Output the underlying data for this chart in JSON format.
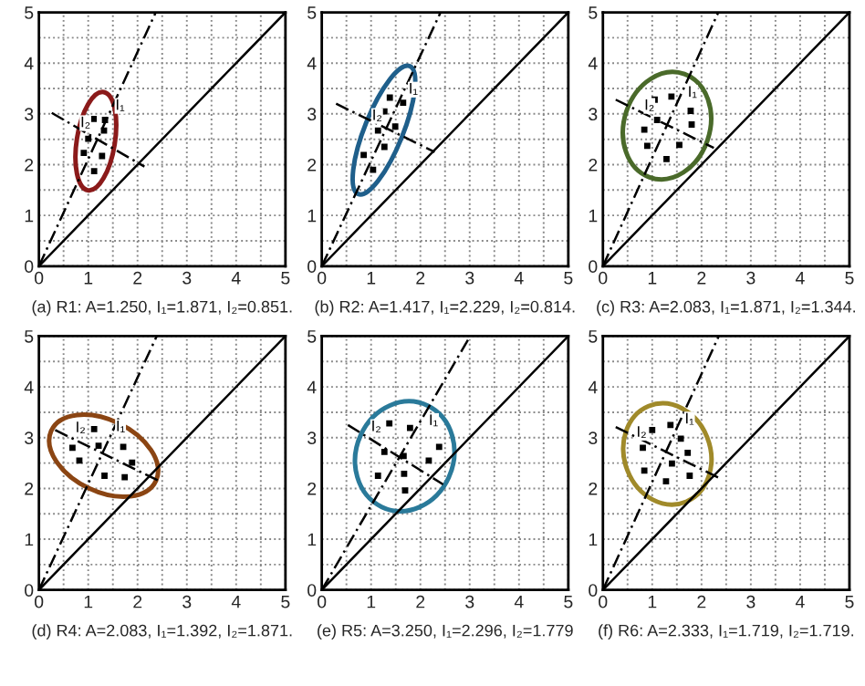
{
  "chart_data": [
    {
      "type": "scatter",
      "xlabel": "(a) R1: A=1.250, I₁=1.871, I₂=0.851.",
      "xlim": [
        0,
        5
      ],
      "ylim": [
        0,
        5
      ],
      "xticks": [
        0,
        {
          "value": 0.5,
          "label": null
        },
        1,
        {
          "value": 1.5,
          "label": null
        },
        2,
        {
          "value": 2.5,
          "label": null
        },
        3,
        {
          "value": 3.5,
          "label": null
        },
        4,
        {
          "value": 4.5,
          "label": null
        },
        5
      ],
      "yticks": [
        0,
        {
          "value": 0.5,
          "label": null
        },
        1,
        {
          "value": 1.5,
          "label": null
        },
        2,
        {
          "value": 2.5,
          "label": null
        },
        3,
        {
          "value": 3.5,
          "label": null
        },
        4,
        {
          "value": 4.5,
          "label": null
        },
        5
      ],
      "grid": true,
      "annotations": [
        {
          "text": "I₁",
          "x": 1.55,
          "y": 3.08
        },
        {
          "text": "I₂",
          "x": 0.84,
          "y": 2.74
        }
      ],
      "series": [
        {
          "type": "scatter",
          "marker": "square",
          "color": "#000000",
          "x": [
            1.11,
            1.34,
            1.32,
            1.0,
            0.91,
            1.28,
            1.12
          ],
          "values": [
            2.9,
            2.88,
            2.67,
            2.51,
            2.23,
            2.17,
            1.87
          ]
        },
        {
          "type": "line",
          "line_style": "solid",
          "color": "#000000",
          "x": [
            0,
            5
          ],
          "values": [
            0,
            5
          ]
        },
        {
          "type": "line",
          "line_style": "dashed",
          "color": "#000000",
          "x": [
            0,
            2.37
          ],
          "values": [
            0,
            5
          ]
        },
        {
          "type": "line",
          "line_style": "dashed",
          "color": "#000000",
          "x": [
            0.26,
            2.14
          ],
          "values": [
            3.02,
            1.96
          ]
        }
      ]
    },
    {
      "type": "scatter",
      "xlabel": "(b) R2: A=1.417, I₁=2.229, I₂=0.814.",
      "xlim": [
        0,
        5
      ],
      "ylim": [
        0,
        5
      ],
      "xticks": [
        0,
        {
          "value": 0.5,
          "label": null
        },
        1,
        {
          "value": 1.5,
          "label": null
        },
        2,
        {
          "value": 2.5,
          "label": null
        },
        3,
        {
          "value": 3.5,
          "label": null
        },
        4,
        {
          "value": 4.5,
          "label": null
        },
        5
      ],
      "yticks": [
        0,
        {
          "value": 0.5,
          "label": null
        },
        1,
        {
          "value": 1.5,
          "label": null
        },
        2,
        {
          "value": 2.5,
          "label": null
        },
        3,
        {
          "value": 3.5,
          "label": null
        },
        4,
        {
          "value": 4.5,
          "label": null
        },
        5
      ],
      "grid": true,
      "annotations": [
        {
          "text": "I₁",
          "x": 1.76,
          "y": 3.4
        },
        {
          "text": "I₂",
          "x": 1.02,
          "y": 2.88
        }
      ],
      "series": [
        {
          "type": "scatter",
          "marker": "square",
          "color": "#000000",
          "x": [
            1.38,
            1.65,
            1.27,
            1.14,
            1.49,
            1.27,
            0.85,
            1.04
          ],
          "values": [
            3.32,
            3.22,
            3.05,
            2.67,
            2.75,
            2.35,
            2.19,
            1.9
          ]
        },
        {
          "type": "line",
          "line_style": "solid",
          "color": "#000000",
          "x": [
            0,
            5
          ],
          "values": [
            0,
            5
          ]
        },
        {
          "type": "line",
          "line_style": "dashed",
          "color": "#000000",
          "x": [
            0,
            2.41
          ],
          "values": [
            0,
            5
          ]
        },
        {
          "type": "line",
          "line_style": "dashed",
          "color": "#000000",
          "x": [
            0.29,
            2.29
          ],
          "values": [
            3.2,
            2.25
          ]
        }
      ]
    },
    {
      "type": "scatter",
      "xlabel": "(c) R3: A=2.083, I₁=1.871, I₂=1.344.",
      "xlim": [
        0,
        5
      ],
      "ylim": [
        0,
        5
      ],
      "xticks": [
        0,
        {
          "value": 0.5,
          "label": null
        },
        1,
        {
          "value": 1.5,
          "label": null
        },
        2,
        {
          "value": 2.5,
          "label": null
        },
        3,
        {
          "value": 3.5,
          "label": null
        },
        4,
        {
          "value": 4.5,
          "label": null
        },
        5
      ],
      "yticks": [
        0,
        {
          "value": 0.5,
          "label": null
        },
        1,
        {
          "value": 1.5,
          "label": null
        },
        2,
        {
          "value": 2.5,
          "label": null
        },
        3,
        {
          "value": 3.5,
          "label": null
        },
        4,
        {
          "value": 4.5,
          "label": null
        },
        5
      ],
      "grid": true,
      "annotations": [
        {
          "text": "I₁",
          "x": 1.72,
          "y": 3.34
        },
        {
          "text": "I₂",
          "x": 0.84,
          "y": 3.08
        }
      ],
      "series": [
        {
          "type": "scatter",
          "marker": "square",
          "color": "#000000",
          "x": [
            1.05,
            1.39,
            1.78,
            1.1,
            0.84,
            1.8,
            1.55,
            0.9,
            1.29
          ],
          "values": [
            3.28,
            3.34,
            3.06,
            2.88,
            2.69,
            2.79,
            2.39,
            2.37,
            2.11
          ]
        },
        {
          "type": "line",
          "line_style": "solid",
          "color": "#000000",
          "x": [
            0,
            5
          ],
          "values": [
            0,
            5
          ]
        },
        {
          "type": "line",
          "line_style": "dashed",
          "color": "#000000",
          "x": [
            0,
            2.34
          ],
          "values": [
            0,
            5
          ]
        },
        {
          "type": "line",
          "line_style": "dashed",
          "color": "#000000",
          "x": [
            0.26,
            2.25
          ],
          "values": [
            3.28,
            2.33
          ]
        }
      ]
    },
    {
      "type": "scatter",
      "xlabel": "(d) R4: A=2.083, I₁=1.392, I₂=1.871.",
      "xlim": [
        0,
        5
      ],
      "ylim": [
        0,
        5
      ],
      "xticks": [
        0,
        {
          "value": 0.5,
          "label": null
        },
        1,
        {
          "value": 1.5,
          "label": null
        },
        2,
        {
          "value": 2.5,
          "label": null
        },
        3,
        {
          "value": 3.5,
          "label": null
        },
        4,
        {
          "value": 4.5,
          "label": null
        },
        5
      ],
      "yticks": [
        0,
        {
          "value": 0.5,
          "label": null
        },
        1,
        {
          "value": 1.5,
          "label": null
        },
        2,
        {
          "value": 2.5,
          "label": null
        },
        3,
        {
          "value": 3.5,
          "label": null
        },
        4,
        {
          "value": 4.5,
          "label": null
        },
        5
      ],
      "grid": true,
      "annotations": [
        {
          "text": "I₁",
          "x": 1.56,
          "y": 3.13
        },
        {
          "text": "I₂",
          "x": 0.74,
          "y": 3.11
        }
      ],
      "series": [
        {
          "type": "scatter",
          "marker": "square",
          "color": "#000000",
          "x": [
            1.12,
            1.21,
            0.68,
            1.71,
            0.82,
            1.89,
            1.33,
            1.74
          ],
          "values": [
            3.17,
            2.84,
            2.8,
            2.82,
            2.55,
            2.51,
            2.25,
            2.22
          ]
        },
        {
          "type": "line",
          "line_style": "solid",
          "color": "#000000",
          "x": [
            0,
            5
          ],
          "values": [
            0,
            5
          ]
        },
        {
          "type": "line",
          "line_style": "dashed",
          "color": "#000000",
          "x": [
            0,
            2.39
          ],
          "values": [
            0,
            5
          ]
        },
        {
          "type": "line",
          "line_style": "dashed",
          "color": "#000000",
          "x": [
            0.33,
            2.45
          ],
          "values": [
            3.15,
            2.14
          ]
        }
      ]
    },
    {
      "type": "scatter",
      "xlabel": "(e) R5: A=3.250, I₁=2.296, I₂=1.779",
      "xlim": [
        0,
        5
      ],
      "ylim": [
        0,
        5
      ],
      "xticks": [
        0,
        {
          "value": 0.5,
          "label": null
        },
        1,
        {
          "value": 1.5,
          "label": null
        },
        2,
        {
          "value": 2.5,
          "label": null
        },
        3,
        {
          "value": 3.5,
          "label": null
        },
        4,
        {
          "value": 4.5,
          "label": null
        },
        5
      ],
      "yticks": [
        0,
        {
          "value": 0.5,
          "label": null
        },
        1,
        {
          "value": 1.5,
          "label": null
        },
        2,
        {
          "value": 2.5,
          "label": null
        },
        3,
        {
          "value": 3.5,
          "label": null
        },
        4,
        {
          "value": 4.5,
          "label": null
        },
        5
      ],
      "grid": true,
      "annotations": [
        {
          "text": "I₁",
          "x": 2.17,
          "y": 3.25
        },
        {
          "text": "I₂",
          "x": 1.0,
          "y": 3.13
        }
      ],
      "series": [
        {
          "type": "scatter",
          "marker": "square",
          "color": "#000000",
          "x": [
            1.37,
            1.79,
            2.38,
            1.27,
            1.66,
            2.17,
            1.14,
            1.67,
            1.69
          ],
          "values": [
            3.28,
            3.19,
            2.82,
            2.72,
            2.64,
            2.55,
            2.25,
            2.29,
            1.96
          ]
        },
        {
          "type": "line",
          "line_style": "solid",
          "color": "#000000",
          "x": [
            0,
            5
          ],
          "values": [
            0,
            5
          ]
        },
        {
          "type": "line",
          "line_style": "dashed",
          "color": "#000000",
          "x": [
            0,
            3.01
          ],
          "values": [
            0,
            5
          ]
        },
        {
          "type": "line",
          "line_style": "dashed",
          "color": "#000000",
          "x": [
            0.53,
            2.46
          ],
          "values": [
            3.25,
            2.08
          ]
        }
      ]
    },
    {
      "type": "scatter",
      "xlabel": "(f) R6: A=2.333, I₁=1.719, I₂=1.719.",
      "xlim": [
        0,
        5
      ],
      "ylim": [
        0,
        5
      ],
      "xticks": [
        0,
        {
          "value": 0.5,
          "label": null
        },
        1,
        {
          "value": 1.5,
          "label": null
        },
        2,
        {
          "value": 2.5,
          "label": null
        },
        3,
        {
          "value": 3.5,
          "label": null
        },
        4,
        {
          "value": 4.5,
          "label": null
        },
        5
      ],
      "yticks": [
        0,
        {
          "value": 0.5,
          "label": null
        },
        1,
        {
          "value": 1.5,
          "label": null
        },
        2,
        {
          "value": 2.5,
          "label": null
        },
        3,
        {
          "value": 3.5,
          "label": null
        },
        4,
        {
          "value": 4.5,
          "label": null
        },
        5
      ],
      "grid": true,
      "annotations": [
        {
          "text": "I₁",
          "x": 1.66,
          "y": 3.28
        },
        {
          "text": "I₂",
          "x": 0.68,
          "y": 3.02
        }
      ],
      "series": [
        {
          "type": "scatter",
          "marker": "square",
          "color": "#000000",
          "x": [
            1.0,
            1.37,
            1.58,
            0.81,
            1.72,
            1.4,
            0.84,
            1.76,
            1.28
          ],
          "values": [
            3.15,
            3.25,
            2.98,
            2.8,
            2.7,
            2.49,
            2.35,
            2.25,
            2.14
          ]
        },
        {
          "type": "line",
          "line_style": "solid",
          "color": "#000000",
          "x": [
            0,
            5
          ],
          "values": [
            0,
            5
          ]
        },
        {
          "type": "line",
          "line_style": "dashed",
          "color": "#000000",
          "x": [
            0,
            2.35
          ],
          "values": [
            0,
            5
          ]
        },
        {
          "type": "line",
          "line_style": "dashed",
          "color": "#000000",
          "x": [
            0.26,
            2.37
          ],
          "values": [
            3.21,
            2.2
          ]
        }
      ]
    }
  ]
}
